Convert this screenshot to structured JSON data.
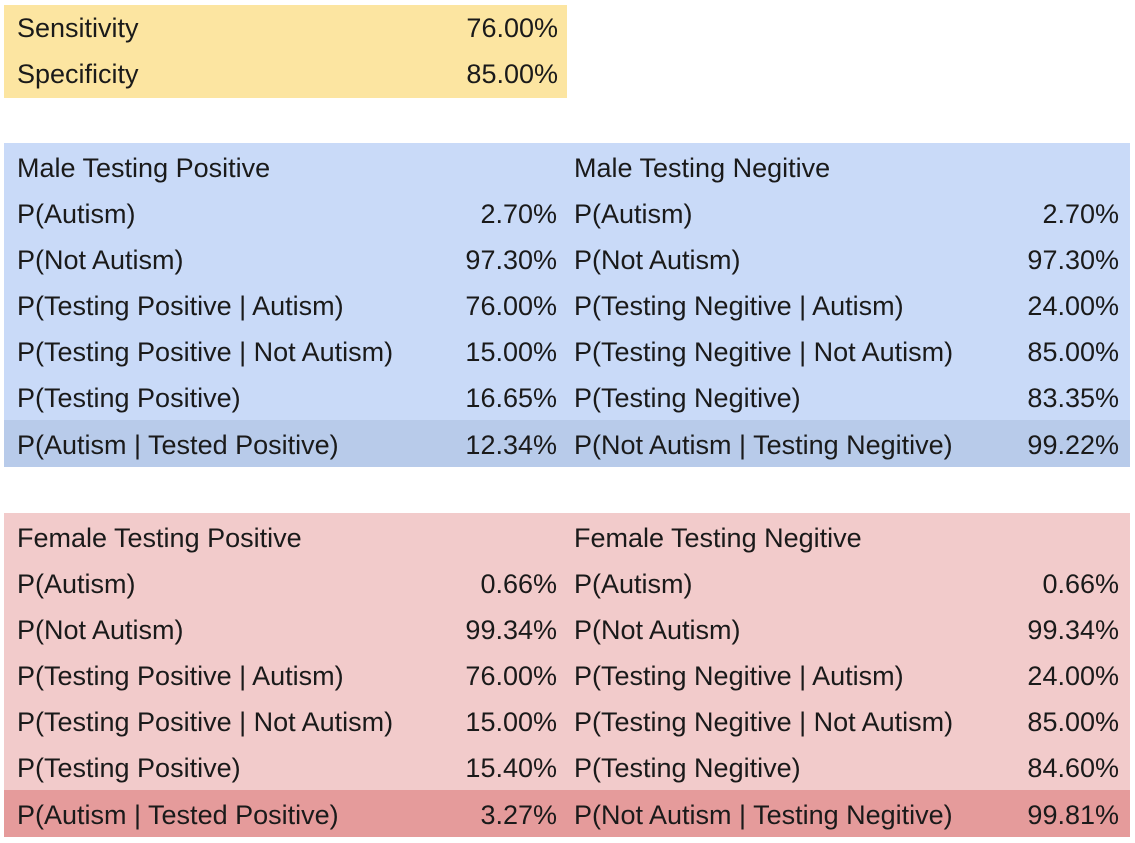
{
  "settings": {
    "rows": [
      {
        "label": "Sensitivity",
        "value": "76.00%"
      },
      {
        "label": "Specificity",
        "value": "85.00%"
      }
    ]
  },
  "male": {
    "positive": {
      "title": "Male Testing Positive",
      "rows": [
        {
          "label": "P(Autism)",
          "value": "2.70%"
        },
        {
          "label": "P(Not Autism)",
          "value": "97.30%"
        },
        {
          "label": "P(Testing Positive | Autism)",
          "value": "76.00%"
        },
        {
          "label": "P(Testing Positive | Not Autism)",
          "value": "15.00%"
        },
        {
          "label": "P(Testing Positive)",
          "value": "16.65%"
        },
        {
          "label": "P(Autism | Tested Positive)",
          "value": "12.34%"
        }
      ]
    },
    "negative": {
      "title": "Male Testing Negitive",
      "rows": [
        {
          "label": "P(Autism)",
          "value": "2.70%"
        },
        {
          "label": "P(Not Autism)",
          "value": "97.30%"
        },
        {
          "label": "P(Testing Negitive | Autism)",
          "value": "24.00%"
        },
        {
          "label": "P(Testing Negitive | Not Autism)",
          "value": "85.00%"
        },
        {
          "label": "P(Testing Negitive)",
          "value": "83.35%"
        },
        {
          "label": "P(Not Autism | Testing Negitive)",
          "value": "99.22%"
        }
      ]
    }
  },
  "female": {
    "positive": {
      "title": "Female Testing Positive",
      "rows": [
        {
          "label": "P(Autism)",
          "value": "0.66%"
        },
        {
          "label": "P(Not Autism)",
          "value": "99.34%"
        },
        {
          "label": "P(Testing Positive | Autism)",
          "value": "76.00%"
        },
        {
          "label": "P(Testing Positive | Not Autism)",
          "value": "15.00%"
        },
        {
          "label": "P(Testing Positive)",
          "value": "15.40%"
        },
        {
          "label": "P(Autism | Tested Positive)",
          "value": "3.27%"
        }
      ]
    },
    "negative": {
      "title": "Female Testing Negitive",
      "rows": [
        {
          "label": "P(Autism)",
          "value": "0.66%"
        },
        {
          "label": "P(Not Autism)",
          "value": "99.34%"
        },
        {
          "label": "P(Testing Negitive | Autism)",
          "value": "24.00%"
        },
        {
          "label": "P(Testing Negitive | Not Autism)",
          "value": "85.00%"
        },
        {
          "label": "P(Testing Negitive)",
          "value": "84.60%"
        },
        {
          "label": "P(Not Autism | Testing Negitive)",
          "value": "99.81%"
        }
      ]
    }
  },
  "colors": {
    "settings_bg": "#fce5a1",
    "male_bg": "#c9daf8",
    "male_highlight": "#b8cbea",
    "female_bg": "#f2cbcb",
    "female_highlight": "#e59b9b"
  }
}
